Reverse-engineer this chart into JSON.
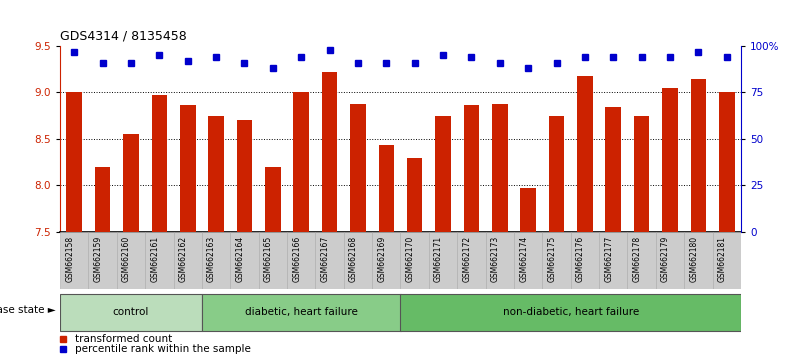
{
  "title": "GDS4314 / 8135458",
  "samples": [
    "GSM662158",
    "GSM662159",
    "GSM662160",
    "GSM662161",
    "GSM662162",
    "GSM662163",
    "GSM662164",
    "GSM662165",
    "GSM662166",
    "GSM662167",
    "GSM662168",
    "GSM662169",
    "GSM662170",
    "GSM662171",
    "GSM662172",
    "GSM662173",
    "GSM662174",
    "GSM662175",
    "GSM662176",
    "GSM662177",
    "GSM662178",
    "GSM662179",
    "GSM662180",
    "GSM662181"
  ],
  "bar_values": [
    9.0,
    8.2,
    8.55,
    8.97,
    8.87,
    8.75,
    8.7,
    8.2,
    9.0,
    9.22,
    8.88,
    8.44,
    8.3,
    8.75,
    8.87,
    8.88,
    7.97,
    8.75,
    9.18,
    8.84,
    8.75,
    9.05,
    9.15,
    9.0
  ],
  "percentile_values": [
    97,
    91,
    91,
    95,
    92,
    94,
    91,
    88,
    94,
    98,
    91,
    91,
    91,
    95,
    94,
    91,
    88,
    91,
    94,
    94,
    94,
    94,
    97,
    94
  ],
  "bar_color": "#cc2200",
  "percentile_color": "#0000cc",
  "ylim_left": [
    7.5,
    9.5
  ],
  "ylim_right": [
    0,
    100
  ],
  "yticks_left": [
    7.5,
    8.0,
    8.5,
    9.0,
    9.5
  ],
  "yticks_right": [
    0,
    25,
    50,
    75,
    100
  ],
  "ytick_labels_right": [
    "0",
    "25",
    "50",
    "75",
    "100%"
  ],
  "groups": [
    {
      "label": "control",
      "start": 0,
      "end": 5,
      "color": "#bbddbb"
    },
    {
      "label": "diabetic, heart failure",
      "start": 5,
      "end": 12,
      "color": "#88cc88"
    },
    {
      "label": "non-diabetic, heart failure",
      "start": 12,
      "end": 24,
      "color": "#66bb66"
    }
  ],
  "legend_bar_label": "transformed count",
  "legend_dot_label": "percentile rank within the sample",
  "disease_state_label": "disease state"
}
